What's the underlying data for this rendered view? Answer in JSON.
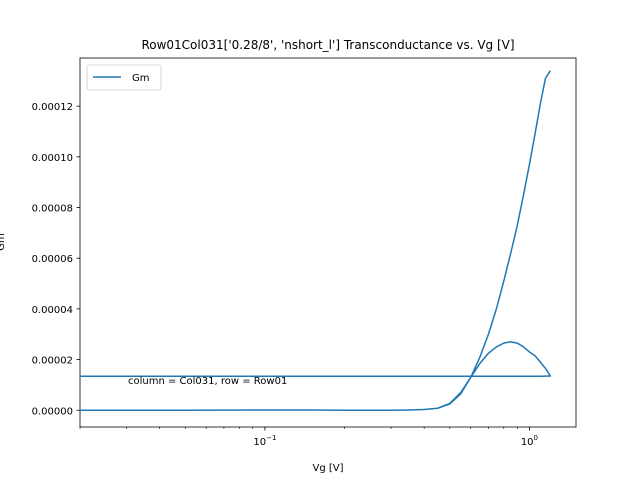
{
  "chart_data": {
    "type": "line",
    "title": "Row01Col031['0.28/8', 'nshort_l'] Transconductance vs. Vg [V]",
    "xlabel": "Vg [V]",
    "ylabel": "Gm",
    "xscale": "log",
    "xlim": [
      0.02,
      1.5
    ],
    "ylim": [
      -6.6e-06,
      0.000139
    ],
    "x_ticks": [
      {
        "value": 0.1,
        "base": "10",
        "exp": "−1"
      },
      {
        "value": 1,
        "base": "10",
        "exp": "0"
      }
    ],
    "y_ticks": [
      {
        "value": 0,
        "label": "0.00000"
      },
      {
        "value": 2e-05,
        "label": "0.00002"
      },
      {
        "value": 4e-05,
        "label": "0.00004"
      },
      {
        "value": 6e-05,
        "label": "0.00006"
      },
      {
        "value": 8e-05,
        "label": "0.00008"
      },
      {
        "value": 0.0001,
        "label": "0.00010"
      },
      {
        "value": 0.00012,
        "label": "0.00012"
      }
    ],
    "legend": {
      "position": "upper-left",
      "entries": [
        "Gm"
      ]
    },
    "annotation": "column = Col031, row = Row01",
    "series_color": "#1f77b4",
    "series": [
      {
        "name": "Gm",
        "x": [
          1.2,
          1.15,
          1.1,
          1.05,
          1.0,
          0.95,
          0.9,
          0.85,
          0.8,
          0.75,
          0.7,
          0.65,
          0.6,
          0.55,
          0.5,
          0.45,
          0.4,
          0.35,
          0.3,
          0.25,
          0.2,
          0.15,
          0.1,
          0.05,
          0.02,
          0.05,
          0.1,
          0.15,
          0.2,
          0.25,
          0.3,
          0.35,
          0.4,
          0.45,
          0.5,
          0.55,
          0.6,
          0.65,
          0.7,
          0.75,
          0.8,
          0.85,
          0.9,
          0.95,
          1.0,
          1.05,
          1.1,
          1.15,
          1.2,
          1.1,
          1.0,
          0.8,
          0.6,
          0.4,
          0.2,
          0.1,
          0.05,
          0.02
        ],
        "y": [
          0.000134,
          0.000131,
          0.000121,
          0.000109,
          9.7e-05,
          8.5e-05,
          7.3e-05,
          6.2e-05,
          5.1e-05,
          4e-05,
          3e-05,
          2.1e-05,
          1.3e-05,
          6.5e-06,
          2.5e-06,
          8e-07,
          3e-07,
          1e-07,
          0.0,
          0.0,
          0.0,
          1e-07,
          1e-07,
          0.0,
          0.0,
          0.0,
          1e-07,
          1e-07,
          0.0,
          0.0,
          0.0,
          1e-07,
          3e-07,
          8e-07,
          2.7e-06,
          7e-06,
          1.3e-05,
          1.85e-05,
          2.25e-05,
          2.5e-05,
          2.65e-05,
          2.7e-05,
          2.65e-05,
          2.5e-05,
          2.3e-05,
          2.15e-05,
          1.9e-05,
          1.65e-05,
          1.35e-05,
          1.34e-05,
          1.34e-05,
          1.34e-05,
          1.34e-05,
          1.34e-05,
          1.34e-05,
          1.34e-05,
          1.34e-05,
          1.34e-05
        ]
      }
    ]
  }
}
